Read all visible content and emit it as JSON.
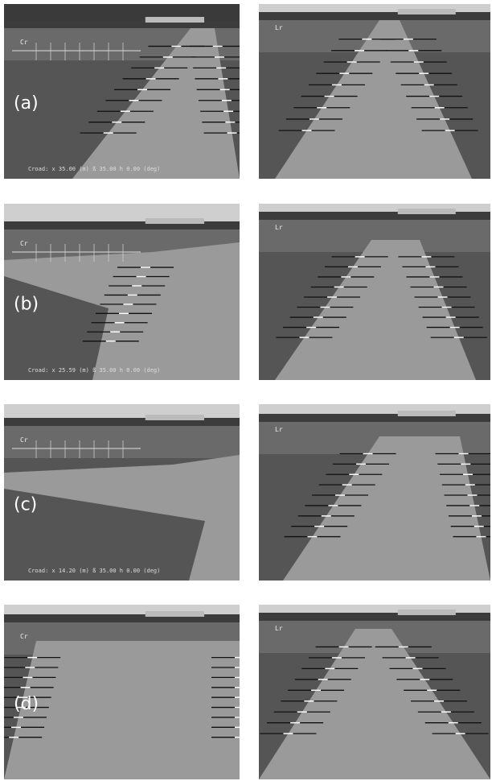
{
  "panels": [
    {
      "label": "(a)",
      "left_marker": "Cr",
      "left_status": "Croad: x 35.00 (m) ß 35.00 h 0.00 (deg)",
      "right_marker": "Lr"
    },
    {
      "label": "(b)",
      "left_marker": "Cr",
      "left_status": "Croad: x 25.59 (m) ß 35.00 h 0.00 (deg)",
      "right_marker": "Lr"
    },
    {
      "label": "(c)",
      "left_marker": "Cr",
      "left_status": "Croad: x 14.20 (m) ß 35.00 h 0.00 (deg)",
      "right_marker": "Lr"
    },
    {
      "label": "(d)",
      "left_marker": "Cr",
      "right_marker": "Lr"
    }
  ]
}
